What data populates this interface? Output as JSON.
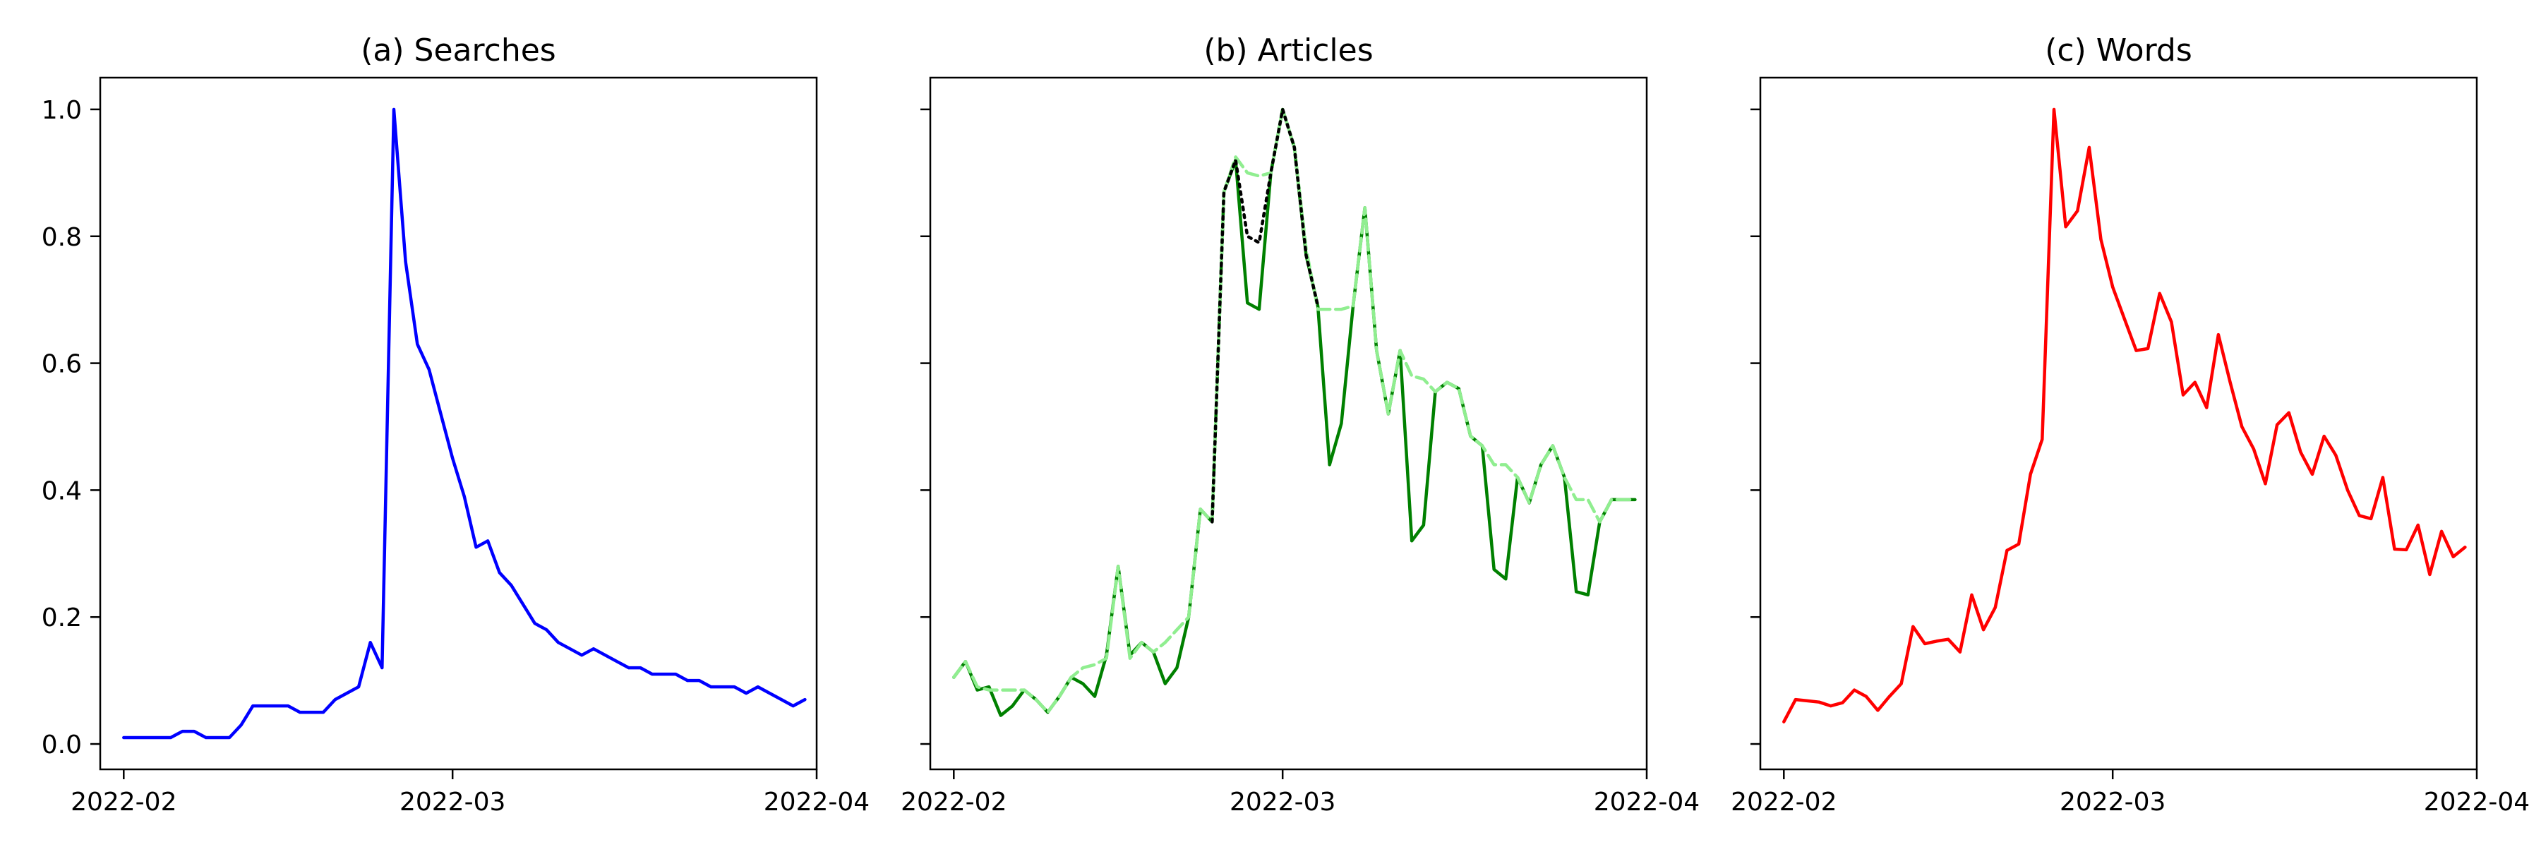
{
  "chart_data": [
    {
      "type": "line",
      "title": "(a) Searches",
      "xlabel": "",
      "ylabel": "",
      "x_ticks": [
        "2022-02",
        "2022-03",
        "2022-04"
      ],
      "y_ticks": [
        "0.0",
        "0.2",
        "0.4",
        "0.6",
        "0.8",
        "1.0"
      ],
      "xlim": [
        "2022-01-30",
        "2022-04-01"
      ],
      "ylim": [
        -0.04,
        1.05
      ],
      "grid": false,
      "series": [
        {
          "color": "#0000ff",
          "dash": "solid",
          "x": [
            "2022-02-01",
            "2022-02-02",
            "2022-02-03",
            "2022-02-04",
            "2022-02-05",
            "2022-02-06",
            "2022-02-07",
            "2022-02-08",
            "2022-02-09",
            "2022-02-10",
            "2022-02-11",
            "2022-02-12",
            "2022-02-13",
            "2022-02-14",
            "2022-02-15",
            "2022-02-16",
            "2022-02-17",
            "2022-02-18",
            "2022-02-19",
            "2022-02-20",
            "2022-02-21",
            "2022-02-22",
            "2022-02-23",
            "2022-02-24",
            "2022-02-25",
            "2022-02-26",
            "2022-02-27",
            "2022-02-28",
            "2022-03-01",
            "2022-03-02",
            "2022-03-03",
            "2022-03-04",
            "2022-03-05",
            "2022-03-06",
            "2022-03-07",
            "2022-03-08",
            "2022-03-09",
            "2022-03-10",
            "2022-03-11",
            "2022-03-12",
            "2022-03-13",
            "2022-03-14",
            "2022-03-15",
            "2022-03-16",
            "2022-03-17",
            "2022-03-18",
            "2022-03-19",
            "2022-03-20",
            "2022-03-21",
            "2022-03-22",
            "2022-03-23",
            "2022-03-24",
            "2022-03-25",
            "2022-03-26",
            "2022-03-27",
            "2022-03-28",
            "2022-03-29",
            "2022-03-30",
            "2022-03-31"
          ],
          "y": [
            0.01,
            0.01,
            0.01,
            0.01,
            0.01,
            0.02,
            0.02,
            0.01,
            0.01,
            0.01,
            0.03,
            0.06,
            0.06,
            0.06,
            0.06,
            0.05,
            0.05,
            0.05,
            0.07,
            0.08,
            0.09,
            0.16,
            0.12,
            1.0,
            0.76,
            0.63,
            0.59,
            0.52,
            0.45,
            0.39,
            0.31,
            0.32,
            0.27,
            0.25,
            0.22,
            0.19,
            0.18,
            0.16,
            0.15,
            0.14,
            0.15,
            0.14,
            0.13,
            0.12,
            0.12,
            0.11,
            0.11,
            0.11,
            0.1,
            0.1,
            0.09,
            0.09,
            0.09,
            0.08,
            0.09,
            0.08,
            0.07,
            0.06,
            0.07
          ]
        }
      ]
    },
    {
      "type": "line",
      "title": "(b) Articles",
      "xlabel": "",
      "ylabel": "",
      "x_ticks": [
        "2022-02",
        "2022-03",
        "2022-04"
      ],
      "y_ticks": [
        "",
        "",
        "",
        "",
        "",
        ""
      ],
      "xlim": [
        "2022-01-30",
        "2022-04-01"
      ],
      "ylim": [
        -0.04,
        1.05
      ],
      "grid": false,
      "series": [
        {
          "color": "#008000",
          "dash": "solid",
          "x": [
            "2022-02-01",
            "2022-02-02",
            "2022-02-03",
            "2022-02-04",
            "2022-02-05",
            "2022-02-06",
            "2022-02-07",
            "2022-02-08",
            "2022-02-09",
            "2022-02-10",
            "2022-02-11",
            "2022-02-12",
            "2022-02-13",
            "2022-02-14",
            "2022-02-15",
            "2022-02-16",
            "2022-02-17",
            "2022-02-18",
            "2022-02-19",
            "2022-02-20",
            "2022-02-21",
            "2022-02-22",
            "2022-02-23",
            "2022-02-24",
            "2022-02-25",
            "2022-02-26",
            "2022-02-27",
            "2022-02-28",
            "2022-03-01",
            "2022-03-02",
            "2022-03-03",
            "2022-03-04",
            "2022-03-05",
            "2022-03-06",
            "2022-03-07",
            "2022-03-08",
            "2022-03-09",
            "2022-03-10",
            "2022-03-11",
            "2022-03-12",
            "2022-03-13",
            "2022-03-14",
            "2022-03-15",
            "2022-03-16",
            "2022-03-17",
            "2022-03-18",
            "2022-03-19",
            "2022-03-20",
            "2022-03-21",
            "2022-03-22",
            "2022-03-23",
            "2022-03-24",
            "2022-03-25",
            "2022-03-26",
            "2022-03-27",
            "2022-03-28",
            "2022-03-29",
            "2022-03-30",
            "2022-03-31"
          ],
          "y": [
            0.105,
            0.13,
            0.085,
            0.09,
            0.045,
            0.06,
            0.085,
            0.07,
            0.05,
            0.075,
            0.105,
            0.095,
            0.075,
            0.14,
            0.28,
            0.14,
            0.16,
            0.145,
            0.095,
            0.12,
            0.2,
            0.37,
            0.35,
            0.87,
            0.92,
            0.695,
            0.685,
            0.9,
            1.0,
            0.94,
            0.77,
            0.69,
            0.44,
            0.505,
            0.69,
            0.845,
            0.62,
            0.52,
            0.62,
            0.32,
            0.345,
            0.555,
            0.57,
            0.56,
            0.485,
            0.47,
            0.275,
            0.26,
            0.42,
            0.38,
            0.44,
            0.47,
            0.42,
            0.24,
            0.235,
            0.35,
            0.385,
            0.385,
            0.385
          ]
        },
        {
          "color": "#90ee90",
          "dash": "dashed",
          "x": [
            "2022-02-01",
            "2022-02-02",
            "2022-02-03",
            "2022-02-04",
            "2022-02-05",
            "2022-02-06",
            "2022-02-07",
            "2022-02-08",
            "2022-02-09",
            "2022-02-10",
            "2022-02-11",
            "2022-02-12",
            "2022-02-13",
            "2022-02-14",
            "2022-02-15",
            "2022-02-16",
            "2022-02-17",
            "2022-02-18",
            "2022-02-19",
            "2022-02-20",
            "2022-02-21",
            "2022-02-22",
            "2022-02-23",
            "2022-02-24",
            "2022-02-25",
            "2022-02-26",
            "2022-02-27",
            "2022-02-28",
            "2022-03-01",
            "2022-03-02",
            "2022-03-03",
            "2022-03-04",
            "2022-03-05",
            "2022-03-06",
            "2022-03-07",
            "2022-03-08",
            "2022-03-09",
            "2022-03-10",
            "2022-03-11",
            "2022-03-12",
            "2022-03-13",
            "2022-03-14",
            "2022-03-15",
            "2022-03-16",
            "2022-03-17",
            "2022-03-18",
            "2022-03-19",
            "2022-03-20",
            "2022-03-21",
            "2022-03-22",
            "2022-03-23",
            "2022-03-24",
            "2022-03-25",
            "2022-03-26",
            "2022-03-27",
            "2022-03-28",
            "2022-03-29",
            "2022-03-30",
            "2022-03-31"
          ],
          "y": [
            0.105,
            0.13,
            0.09,
            0.085,
            0.085,
            0.085,
            0.085,
            0.07,
            0.05,
            0.075,
            0.105,
            0.12,
            0.125,
            0.135,
            0.28,
            0.135,
            0.16,
            0.145,
            0.16,
            0.18,
            0.2,
            0.37,
            0.35,
            0.87,
            0.925,
            0.9,
            0.895,
            0.9,
            1.0,
            0.94,
            0.78,
            0.685,
            0.685,
            0.685,
            0.69,
            0.845,
            0.62,
            0.52,
            0.62,
            0.58,
            0.575,
            0.555,
            0.57,
            0.56,
            0.485,
            0.47,
            0.44,
            0.44,
            0.42,
            0.38,
            0.44,
            0.47,
            0.42,
            0.385,
            0.385,
            0.35,
            0.385,
            0.385,
            0.385
          ]
        },
        {
          "color": "#000000",
          "dash": "dotted",
          "x": [
            "2022-02-23",
            "2022-02-24",
            "2022-02-25",
            "2022-02-26",
            "2022-02-27",
            "2022-02-28",
            "2022-03-01",
            "2022-03-02",
            "2022-03-03",
            "2022-03-04"
          ],
          "y": [
            0.35,
            0.87,
            0.92,
            0.8,
            0.79,
            0.9,
            1.0,
            0.94,
            0.77,
            0.69
          ]
        }
      ]
    },
    {
      "type": "line",
      "title": "(c) Words",
      "xlabel": "",
      "ylabel": "",
      "x_ticks": [
        "2022-02",
        "2022-03",
        "2022-04"
      ],
      "y_ticks": [
        "",
        "",
        "",
        "",
        "",
        ""
      ],
      "xlim": [
        "2022-01-30",
        "2022-04-01"
      ],
      "ylim": [
        -0.04,
        1.05
      ],
      "grid": false,
      "series": [
        {
          "color": "#ff0000",
          "dash": "solid",
          "x": [
            "2022-02-01",
            "2022-02-02",
            "2022-02-03",
            "2022-02-04",
            "2022-02-05",
            "2022-02-06",
            "2022-02-07",
            "2022-02-08",
            "2022-02-09",
            "2022-02-10",
            "2022-02-11",
            "2022-02-12",
            "2022-02-13",
            "2022-02-14",
            "2022-02-15",
            "2022-02-16",
            "2022-02-17",
            "2022-02-18",
            "2022-02-19",
            "2022-02-20",
            "2022-02-21",
            "2022-02-22",
            "2022-02-23",
            "2022-02-24",
            "2022-02-25",
            "2022-02-26",
            "2022-02-27",
            "2022-02-28",
            "2022-03-01",
            "2022-03-02",
            "2022-03-03",
            "2022-03-04",
            "2022-03-05",
            "2022-03-06",
            "2022-03-07",
            "2022-03-08",
            "2022-03-09",
            "2022-03-10",
            "2022-03-11",
            "2022-03-12",
            "2022-03-13",
            "2022-03-14",
            "2022-03-15",
            "2022-03-16",
            "2022-03-17",
            "2022-03-18",
            "2022-03-19",
            "2022-03-20",
            "2022-03-21",
            "2022-03-22",
            "2022-03-23",
            "2022-03-24",
            "2022-03-25",
            "2022-03-26",
            "2022-03-27",
            "2022-03-28",
            "2022-03-29",
            "2022-03-30",
            "2022-03-31"
          ],
          "y": [
            0.035,
            0.07,
            0.068,
            0.066,
            0.06,
            0.065,
            0.085,
            0.075,
            0.053,
            0.075,
            0.095,
            0.185,
            0.158,
            0.162,
            0.165,
            0.145,
            0.235,
            0.18,
            0.215,
            0.305,
            0.315,
            0.425,
            0.48,
            1.0,
            0.815,
            0.84,
            0.94,
            0.795,
            0.72,
            0.67,
            0.62,
            0.623,
            0.71,
            0.665,
            0.55,
            0.57,
            0.53,
            0.645,
            0.57,
            0.5,
            0.465,
            0.41,
            0.503,
            0.522,
            0.46,
            0.425,
            0.485,
            0.455,
            0.4,
            0.36,
            0.355,
            0.42,
            0.307,
            0.306,
            0.345,
            0.267,
            0.335,
            0.295,
            0.31
          ]
        }
      ]
    }
  ]
}
